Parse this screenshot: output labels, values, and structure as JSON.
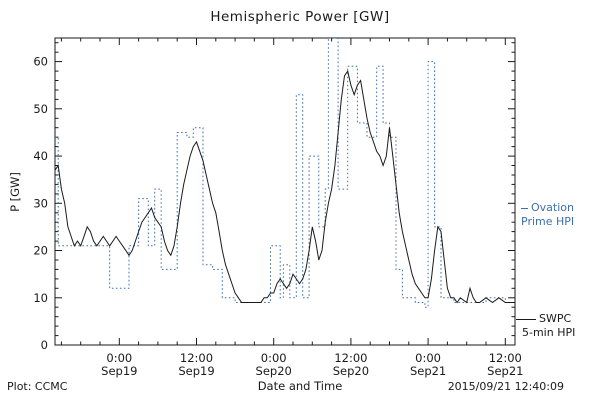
{
  "title": "Hemispheric Power [GW]",
  "axes": {
    "y_label": "P [GW]",
    "x_label": "Date and Time"
  },
  "footer": {
    "left": "Plot: CCMC",
    "right": "2015/09/21 12:40:09"
  },
  "legend": {
    "ovation": {
      "line1": "Ovation",
      "line2": "Prime HPI",
      "color": "#3d6fb0"
    },
    "swpc": {
      "line1": "SWPC",
      "line2": "5-min HPI",
      "color": "#000000"
    }
  },
  "chart_data": {
    "type": "line",
    "title": "Hemispheric Power [GW]",
    "xlabel": "Date and Time",
    "ylabel": "P [GW]",
    "x_unit": "hours since 2015-09-19 00:00",
    "xlim": [
      -10,
      61.5
    ],
    "ylim": [
      0,
      65
    ],
    "grid": false,
    "legend_position": "right-outside",
    "y_ticks": [
      0,
      10,
      20,
      30,
      40,
      50,
      60
    ],
    "x_ticks": [
      {
        "t": 0,
        "line1": "0:00",
        "line2": "Sep19"
      },
      {
        "t": 12,
        "line1": "12:00",
        "line2": "Sep19"
      },
      {
        "t": 24,
        "line1": "0:00",
        "line2": "Sep20"
      },
      {
        "t": 36,
        "line1": "12:00",
        "line2": "Sep20"
      },
      {
        "t": 48,
        "line1": "0:00",
        "line2": "Sep21"
      },
      {
        "t": 60,
        "line1": "12:00",
        "line2": "Sep21"
      }
    ],
    "series": [
      {
        "name": "Ovation Prime HPI",
        "color": "#3d6fb0",
        "style": "dotted-step",
        "points": [
          [
            -10,
            44
          ],
          [
            -9.5,
            21
          ],
          [
            -1.5,
            12
          ],
          [
            1.5,
            21
          ],
          [
            3,
            31
          ],
          [
            4.5,
            21
          ],
          [
            5.5,
            33
          ],
          [
            6.5,
            16
          ],
          [
            9,
            45
          ],
          [
            10.5,
            44
          ],
          [
            11.5,
            46
          ],
          [
            13,
            17
          ],
          [
            14.5,
            16
          ],
          [
            16,
            10
          ],
          [
            18,
            9
          ],
          [
            23.5,
            21
          ],
          [
            25,
            10
          ],
          [
            25.5,
            17
          ],
          [
            26.5,
            10
          ],
          [
            27.5,
            53
          ],
          [
            28.5,
            10
          ],
          [
            29.5,
            40
          ],
          [
            31,
            25
          ],
          [
            32,
            33
          ],
          [
            32.5,
            65
          ],
          [
            34,
            33
          ],
          [
            35.5,
            59
          ],
          [
            37,
            47
          ],
          [
            38.5,
            44
          ],
          [
            40,
            59
          ],
          [
            41,
            47
          ],
          [
            42,
            44
          ],
          [
            43,
            16
          ],
          [
            44,
            10
          ],
          [
            46,
            9
          ],
          [
            47.5,
            8
          ],
          [
            48,
            60
          ],
          [
            49,
            25
          ],
          [
            50,
            10
          ],
          [
            52,
            9
          ],
          [
            57,
            10
          ],
          [
            60,
            9
          ]
        ]
      },
      {
        "name": "SWPC 5-min HPI",
        "color": "#1a1a1a",
        "style": "solid",
        "points": [
          [
            -10,
            37
          ],
          [
            -9.5,
            38
          ],
          [
            -9,
            33
          ],
          [
            -8.5,
            30
          ],
          [
            -8,
            25
          ],
          [
            -7.5,
            23
          ],
          [
            -7,
            21
          ],
          [
            -6.5,
            22
          ],
          [
            -6,
            21
          ],
          [
            -5.5,
            23
          ],
          [
            -5,
            25
          ],
          [
            -4.5,
            24
          ],
          [
            -4,
            22
          ],
          [
            -3.5,
            21
          ],
          [
            -3,
            22
          ],
          [
            -2.5,
            23
          ],
          [
            -2,
            22
          ],
          [
            -1.5,
            21
          ],
          [
            -1,
            22
          ],
          [
            -0.5,
            23
          ],
          [
            0,
            22
          ],
          [
            0.5,
            21
          ],
          [
            1,
            20
          ],
          [
            1.5,
            19
          ],
          [
            2,
            20
          ],
          [
            2.5,
            22
          ],
          [
            3,
            24
          ],
          [
            3.5,
            26
          ],
          [
            4,
            27
          ],
          [
            4.5,
            28
          ],
          [
            5,
            29
          ],
          [
            5.5,
            27
          ],
          [
            6,
            26
          ],
          [
            6.5,
            25
          ],
          [
            7,
            22
          ],
          [
            7.5,
            20
          ],
          [
            8,
            19
          ],
          [
            8.5,
            21
          ],
          [
            9,
            25
          ],
          [
            9.5,
            30
          ],
          [
            10,
            34
          ],
          [
            10.5,
            37
          ],
          [
            11,
            40
          ],
          [
            11.5,
            42
          ],
          [
            12,
            43
          ],
          [
            12.5,
            41
          ],
          [
            13,
            39
          ],
          [
            13.5,
            36
          ],
          [
            14,
            33
          ],
          [
            14.5,
            30
          ],
          [
            15,
            28
          ],
          [
            15.5,
            24
          ],
          [
            16,
            20
          ],
          [
            16.5,
            17
          ],
          [
            17,
            15
          ],
          [
            17.5,
            13
          ],
          [
            18,
            11
          ],
          [
            18.5,
            10
          ],
          [
            19,
            9
          ],
          [
            20,
            9
          ],
          [
            21,
            9
          ],
          [
            22,
            9
          ],
          [
            22.5,
            10
          ],
          [
            23,
            10
          ],
          [
            23.5,
            11
          ],
          [
            24,
            11
          ],
          [
            24.5,
            13
          ],
          [
            25,
            14
          ],
          [
            25.5,
            13
          ],
          [
            26,
            12
          ],
          [
            26.5,
            13
          ],
          [
            27,
            15
          ],
          [
            27.5,
            14
          ],
          [
            28,
            13
          ],
          [
            28.5,
            14
          ],
          [
            29,
            16
          ],
          [
            29.5,
            20
          ],
          [
            30,
            25
          ],
          [
            30.5,
            22
          ],
          [
            31,
            18
          ],
          [
            31.5,
            20
          ],
          [
            32,
            26
          ],
          [
            32.5,
            30
          ],
          [
            33,
            33
          ],
          [
            33.5,
            38
          ],
          [
            34,
            45
          ],
          [
            34.5,
            52
          ],
          [
            35,
            57
          ],
          [
            35.5,
            58
          ],
          [
            36,
            55
          ],
          [
            36.5,
            53
          ],
          [
            37,
            55
          ],
          [
            37.5,
            56
          ],
          [
            38,
            52
          ],
          [
            38.5,
            48
          ],
          [
            39,
            45
          ],
          [
            39.5,
            43
          ],
          [
            40,
            41
          ],
          [
            40.5,
            40
          ],
          [
            41,
            38
          ],
          [
            41.5,
            40
          ],
          [
            42,
            46
          ],
          [
            42.5,
            40
          ],
          [
            43,
            34
          ],
          [
            43.5,
            28
          ],
          [
            44,
            24
          ],
          [
            44.5,
            21
          ],
          [
            45,
            18
          ],
          [
            45.5,
            15
          ],
          [
            46,
            13
          ],
          [
            46.5,
            12
          ],
          [
            47,
            11
          ],
          [
            47.5,
            10
          ],
          [
            48,
            10
          ],
          [
            48.5,
            14
          ],
          [
            49,
            20
          ],
          [
            49.5,
            25
          ],
          [
            50,
            24
          ],
          [
            50.5,
            18
          ],
          [
            51,
            12
          ],
          [
            51.5,
            10
          ],
          [
            52,
            10
          ],
          [
            52.5,
            9
          ],
          [
            53,
            10
          ],
          [
            54,
            9
          ],
          [
            54.5,
            12
          ],
          [
            55,
            10
          ],
          [
            55.5,
            9
          ],
          [
            56,
            9
          ],
          [
            57,
            10
          ],
          [
            58,
            9
          ],
          [
            59,
            10
          ],
          [
            60,
            9
          ],
          [
            61,
            9
          ],
          [
            61.5,
            9
          ]
        ]
      }
    ]
  }
}
